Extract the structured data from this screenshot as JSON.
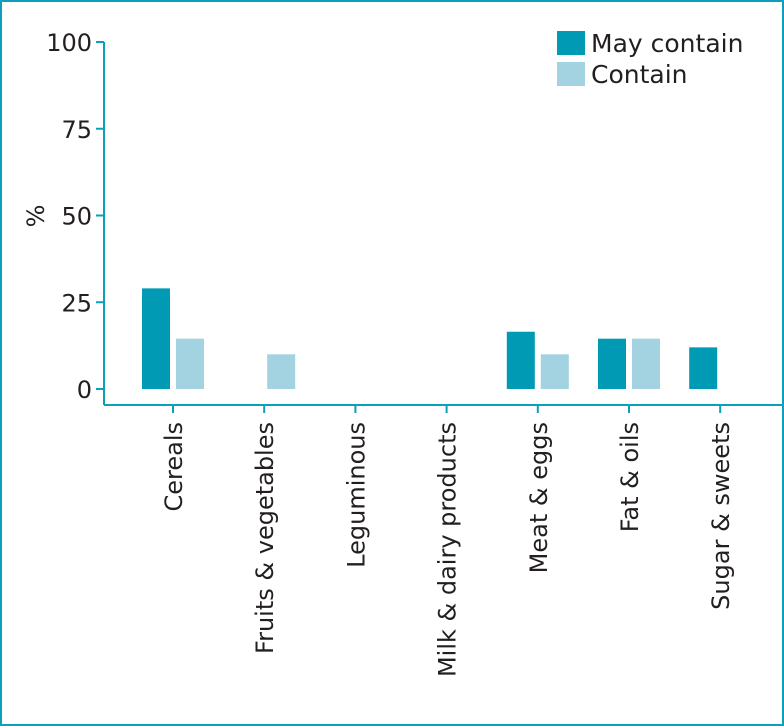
{
  "chart_data": {
    "type": "bar",
    "title": "",
    "xlabel": "",
    "ylabel": "%",
    "ylim": [
      0,
      100
    ],
    "yticks": [
      "0",
      "25",
      "50",
      "75",
      "100"
    ],
    "categories": [
      "Cereals",
      "Fruits & vegetables",
      "Leguminous",
      "Milk & dairy products",
      "Meat & eggs",
      "Fat & oils",
      "Sugar & sweets"
    ],
    "series": [
      {
        "name": "May contain",
        "color": "#009ab4",
        "values": [
          29,
          0,
          0,
          0,
          16.5,
          14.5,
          12
        ]
      },
      {
        "name": "Contain",
        "color": "#a3d3e0",
        "values": [
          14.5,
          10,
          0,
          0,
          10,
          14.5,
          0
        ]
      }
    ],
    "legend_position": "top-right",
    "grid": false
  }
}
